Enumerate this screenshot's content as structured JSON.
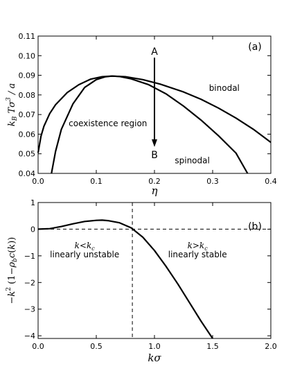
{
  "chart_data": [
    {
      "type": "line",
      "panel_label": "(a)",
      "xlabel": "η",
      "ylabel": "k_B T σ^3 / a",
      "xlim": [
        0.0,
        0.4
      ],
      "ylim": [
        0.04,
        0.11
      ],
      "xticks": [
        0.0,
        0.1,
        0.2,
        0.3,
        0.4
      ],
      "xtick_labels": [
        "0.0",
        "0.1",
        "0.2",
        "0.3",
        "0.4"
      ],
      "yticks": [
        0.04,
        0.05,
        0.06,
        0.07,
        0.08,
        0.09,
        0.1,
        0.11
      ],
      "ytick_labels": [
        "0.04",
        "0.05",
        "0.06",
        "0.07",
        "0.08",
        "0.09",
        "0.10",
        "0.11"
      ],
      "series": [
        {
          "name": "binodal",
          "x": [
            0.0,
            0.005,
            0.01,
            0.02,
            0.03,
            0.05,
            0.07,
            0.09,
            0.11,
            0.127,
            0.15,
            0.18,
            0.21,
            0.25,
            0.28,
            0.31,
            0.34,
            0.37,
            0.4
          ],
          "y": [
            0.0505,
            0.059,
            0.064,
            0.0705,
            0.075,
            0.0812,
            0.0852,
            0.088,
            0.0893,
            0.0896,
            0.0893,
            0.0878,
            0.0855,
            0.0815,
            0.0778,
            0.0733,
            0.0682,
            0.0625,
            0.0558
          ]
        },
        {
          "name": "spinodal",
          "x": [
            0.023,
            0.03,
            0.04,
            0.06,
            0.08,
            0.1,
            0.115,
            0.127,
            0.14,
            0.16,
            0.19,
            0.22,
            0.25,
            0.28,
            0.31,
            0.34,
            0.36
          ],
          "y": [
            0.04,
            0.0512,
            0.0625,
            0.0755,
            0.0838,
            0.0878,
            0.0892,
            0.0896,
            0.0894,
            0.0882,
            0.0852,
            0.0805,
            0.0743,
            0.0672,
            0.0592,
            0.0504,
            0.04
          ]
        }
      ],
      "annotations": [
        {
          "text": "binodal",
          "x": 0.32,
          "y": 0.0835
        },
        {
          "text": "spinodal",
          "x": 0.265,
          "y": 0.0465
        },
        {
          "text": "coexistence region",
          "x": 0.12,
          "y": 0.0655
        }
      ],
      "arrow": {
        "from_label": "A",
        "to_label": "B",
        "x": 0.2,
        "y_from": 0.099,
        "y_to": 0.0535
      }
    },
    {
      "type": "line",
      "panel_label": "(b)",
      "xlabel": "kσ",
      "ylabel": "−k^2 (1−ρ_b c(k))",
      "xlim": [
        0.0,
        2.0
      ],
      "ylim": [
        -4.1,
        1.0
      ],
      "xticks": [
        0.0,
        0.5,
        1.0,
        1.5,
        2.0
      ],
      "xtick_labels": [
        "0.0",
        "0.5",
        "1.0",
        "1.5",
        "2.0"
      ],
      "yticks": [
        -4,
        -3,
        -2,
        -1,
        0,
        1
      ],
      "ytick_labels": [
        "−4",
        "−3",
        "−2",
        "−1",
        "0",
        "1"
      ],
      "series": [
        {
          "x": [
            0.0,
            0.1,
            0.2,
            0.3,
            0.4,
            0.5,
            0.55,
            0.6,
            0.7,
            0.8,
            0.9,
            1.0,
            1.1,
            1.2,
            1.3,
            1.4,
            1.5
          ],
          "y": [
            0.0,
            0.02,
            0.1,
            0.2,
            0.29,
            0.33,
            0.34,
            0.32,
            0.24,
            0.05,
            -0.3,
            -0.8,
            -1.4,
            -2.05,
            -2.75,
            -3.45,
            -4.1
          ]
        }
      ],
      "reference_lines": {
        "horizontal_y": 0,
        "vertical_x": 0.81
      },
      "annotations": [
        {
          "line1": "k<k_c",
          "line2": "linearly unstable",
          "x": 0.4
        },
        {
          "line1": "k>k_c",
          "line2": "linearly stable",
          "x": 1.37
        }
      ]
    }
  ]
}
